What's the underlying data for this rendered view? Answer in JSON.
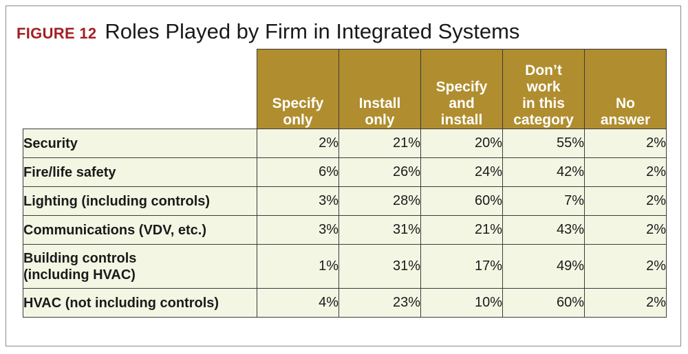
{
  "figure": {
    "label": "FIGURE 12",
    "title": "Roles Played by Firm in Integrated Systems"
  },
  "colors": {
    "header_bg": "#b08d2e",
    "cell_bg": "#f3f6e3",
    "label_red": "#a21f24"
  },
  "chart_data": {
    "type": "table",
    "title": "Roles Played by Firm in Integrated Systems",
    "columns": [
      {
        "lines": [
          "Specify",
          "only"
        ]
      },
      {
        "lines": [
          "Install",
          "only"
        ]
      },
      {
        "lines": [
          "Specify",
          "and",
          "install"
        ]
      },
      {
        "lines": [
          "Don’t",
          "work",
          "in this",
          "category"
        ]
      },
      {
        "lines": [
          "No",
          "answer"
        ]
      }
    ],
    "rows": [
      {
        "lines": [
          "Security"
        ],
        "values": [
          "2%",
          "21%",
          "20%",
          "55%",
          "2%"
        ]
      },
      {
        "lines": [
          "Fire/life safety"
        ],
        "values": [
          "6%",
          "26%",
          "24%",
          "42%",
          "2%"
        ]
      },
      {
        "lines": [
          "Lighting (including controls)"
        ],
        "values": [
          "3%",
          "28%",
          "60%",
          "7%",
          "2%"
        ]
      },
      {
        "lines": [
          "Communications (VDV, etc.)"
        ],
        "values": [
          "3%",
          "31%",
          "21%",
          "43%",
          "2%"
        ]
      },
      {
        "lines": [
          "Building controls",
          "(including HVAC)"
        ],
        "values": [
          "1%",
          "31%",
          "17%",
          "49%",
          "2%"
        ]
      },
      {
        "lines": [
          "HVAC (not including controls)"
        ],
        "values": [
          "4%",
          "23%",
          "10%",
          "60%",
          "2%"
        ]
      }
    ]
  }
}
